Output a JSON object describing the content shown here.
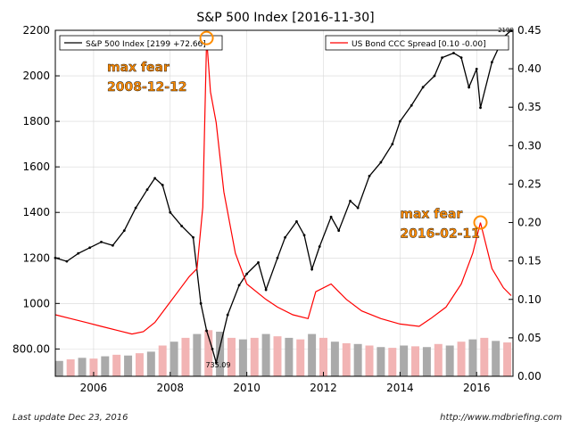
{
  "chart_data": {
    "type": "line",
    "title": "S&P 500 Index  [2016-11-30]",
    "left_axis": {
      "ticks": [
        "800.00",
        "1000",
        "1200",
        "1400",
        "1600",
        "1800",
        "2000",
        "2200"
      ],
      "tick_values": [
        800,
        1000,
        1200,
        1400,
        1600,
        1800,
        2000,
        2200
      ],
      "range": [
        680,
        2200
      ]
    },
    "right_axis": {
      "ticks": [
        "0.00",
        "0.05",
        "0.10",
        "0.15",
        "0.20",
        "0.25",
        "0.30",
        "0.35",
        "0.40",
        "0.45"
      ],
      "tick_values": [
        0,
        0.05,
        0.1,
        0.15,
        0.2,
        0.25,
        0.3,
        0.35,
        0.4,
        0.45
      ],
      "range": [
        0,
        0.45
      ]
    },
    "x_axis": {
      "ticks": [
        "2006",
        "2008",
        "2010",
        "2012",
        "2014",
        "2016"
      ],
      "tick_values": [
        2006,
        2008,
        2010,
        2012,
        2014,
        2016
      ],
      "range": [
        2005.0,
        2016.95
      ]
    },
    "grid": true,
    "legend_left": {
      "label": "S&P 500 Index [2199 +72.66]",
      "color": "#000000",
      "placement": "top-left"
    },
    "legend_right": {
      "label": "US Bond CCC Spread [0.10 -0.00]",
      "color": "#ff0000",
      "placement": "top-right"
    },
    "annotations": [
      {
        "text1": "max fear",
        "text2": "2008-12-12",
        "date": 2008.95,
        "spread": 0.44
      },
      {
        "text1": "max fear",
        "text2": "2016-02-11",
        "date": 2016.1,
        "spread": 0.2
      }
    ],
    "low_label": "735.09",
    "high_label": "2199",
    "series": [
      {
        "name": "S&P 500 Index",
        "axis": "left",
        "x": [
          2005.0,
          2005.3,
          2005.6,
          2005.9,
          2006.2,
          2006.5,
          2006.8,
          2007.1,
          2007.4,
          2007.6,
          2007.8,
          2008.0,
          2008.3,
          2008.6,
          2008.8,
          2008.95,
          2009.1,
          2009.2,
          2009.5,
          2009.8,
          2010.0,
          2010.3,
          2010.5,
          2010.8,
          2011.0,
          2011.3,
          2011.5,
          2011.7,
          2011.9,
          2012.2,
          2012.4,
          2012.7,
          2012.9,
          2013.2,
          2013.5,
          2013.8,
          2014.0,
          2014.3,
          2014.6,
          2014.9,
          2015.1,
          2015.4,
          2015.6,
          2015.8,
          2016.0,
          2016.1,
          2016.4,
          2016.7,
          2016.9
        ],
        "values": [
          1200,
          1185,
          1220,
          1245,
          1270,
          1255,
          1320,
          1420,
          1500,
          1550,
          1520,
          1400,
          1340,
          1290,
          1000,
          880,
          800,
          740,
          950,
          1080,
          1130,
          1180,
          1060,
          1200,
          1290,
          1360,
          1300,
          1150,
          1250,
          1380,
          1320,
          1450,
          1420,
          1560,
          1620,
          1700,
          1800,
          1870,
          1950,
          2000,
          2080,
          2100,
          2080,
          1950,
          2030,
          1860,
          2060,
          2170,
          2199
        ]
      },
      {
        "name": "US Bond CCC Spread",
        "axis": "right",
        "x": [
          2005.0,
          2005.4,
          2005.8,
          2006.2,
          2006.6,
          2007.0,
          2007.3,
          2007.6,
          2007.9,
          2008.2,
          2008.5,
          2008.7,
          2008.85,
          2008.95,
          2009.05,
          2009.2,
          2009.4,
          2009.7,
          2010.0,
          2010.5,
          2010.8,
          2011.2,
          2011.6,
          2011.8,
          2012.2,
          2012.6,
          2013.0,
          2013.5,
          2014.0,
          2014.5,
          2014.8,
          2015.2,
          2015.6,
          2015.9,
          2016.1,
          2016.4,
          2016.7,
          2016.9
        ],
        "values": [
          0.08,
          0.075,
          0.07,
          0.065,
          0.06,
          0.055,
          0.058,
          0.07,
          0.09,
          0.11,
          0.13,
          0.14,
          0.22,
          0.44,
          0.37,
          0.33,
          0.24,
          0.16,
          0.12,
          0.1,
          0.09,
          0.08,
          0.075,
          0.11,
          0.12,
          0.1,
          0.085,
          0.075,
          0.068,
          0.065,
          0.075,
          0.09,
          0.12,
          0.16,
          0.2,
          0.14,
          0.115,
          0.105
        ]
      }
    ],
    "volume": {
      "axis": "right",
      "note": "volume bars along bottom, scaled to right axis units",
      "x": [
        2005.1,
        2005.4,
        2005.7,
        2006.0,
        2006.3,
        2006.6,
        2006.9,
        2007.2,
        2007.5,
        2007.8,
        2008.1,
        2008.4,
        2008.7,
        2009.0,
        2009.3,
        2009.6,
        2009.9,
        2010.2,
        2010.5,
        2010.8,
        2011.1,
        2011.4,
        2011.7,
        2012.0,
        2012.3,
        2012.6,
        2012.9,
        2013.2,
        2013.5,
        2013.8,
        2014.1,
        2014.4,
        2014.7,
        2015.0,
        2015.3,
        2015.6,
        2015.9,
        2016.2,
        2016.5,
        2016.8
      ],
      "values": [
        0.02,
        0.022,
        0.024,
        0.023,
        0.026,
        0.028,
        0.027,
        0.03,
        0.032,
        0.04,
        0.045,
        0.05,
        0.055,
        0.06,
        0.058,
        0.05,
        0.048,
        0.05,
        0.055,
        0.052,
        0.05,
        0.048,
        0.055,
        0.05,
        0.045,
        0.043,
        0.042,
        0.04,
        0.038,
        0.037,
        0.04,
        0.039,
        0.038,
        0.042,
        0.04,
        0.045,
        0.048,
        0.05,
        0.046,
        0.044
      ],
      "color_up": "#f2b4b4",
      "color_down": "#aaaaaa"
    }
  },
  "footer": {
    "left": "Last update Dec 23, 2016",
    "right": "http://www.mdbriefing.com"
  },
  "colors": {
    "price": "#000000",
    "spread": "#ff0000",
    "annotation_bg": "#ff8c00",
    "annotation_circle": "#ff8c00"
  }
}
